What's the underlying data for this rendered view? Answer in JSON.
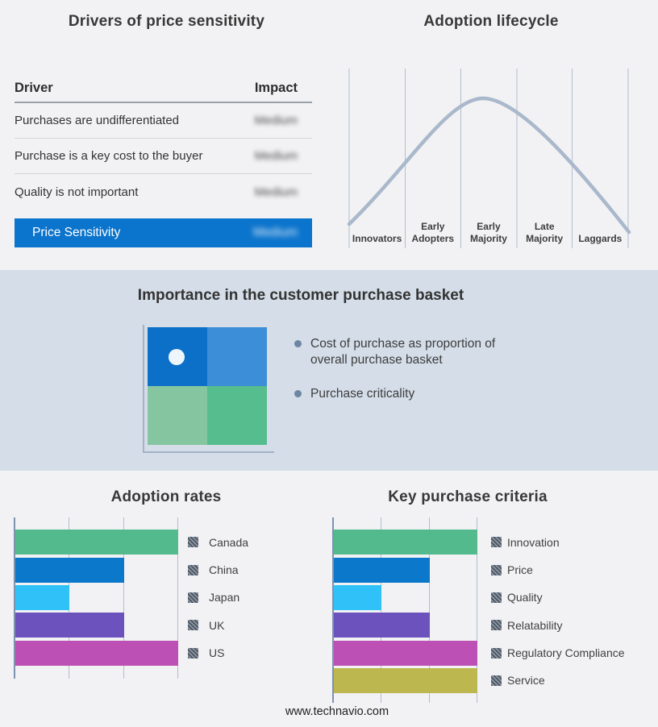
{
  "footer": {
    "url": "www.technavio.com"
  },
  "colors": {
    "accent_blue": "#0b74cc",
    "band_background": "#d4dde8",
    "curve": "#a9b8cb",
    "bullet_dot": "#6e85a3",
    "quadrant": {
      "top_left": "#0c70c8",
      "top_right": "#3d8ed8",
      "bottom_left": "#85c5a0",
      "bottom_right": "#55bd8e"
    },
    "bar_green": "#52ba8c",
    "bar_blue": "#0b78cc",
    "bar_cyan": "#31c1f9",
    "bar_purple": "#6c52bd",
    "bar_magenta": "#bd50b5",
    "bar_olive": "#bcb84f"
  },
  "drivers_table": {
    "title": "Drivers of price sensitivity",
    "columns": [
      "Driver",
      "Impact"
    ],
    "rows": [
      {
        "driver": "Purchases are undifferentiated",
        "impact": "Medium",
        "impact_obscured": true
      },
      {
        "driver": "Purchase is a key cost to the buyer",
        "impact": "Medium",
        "impact_obscured": true
      },
      {
        "driver": "Quality is not important",
        "impact": "Medium",
        "impact_obscured": true
      }
    ],
    "summary_row": {
      "driver": "Price Sensitivity",
      "impact": "Medium",
      "impact_obscured": true
    }
  },
  "basket": {
    "title": "Importance in the customer purchase basket",
    "bullets": [
      "Cost of purchase as proportion of overall purchase basket",
      "Purchase criticality"
    ]
  },
  "chart_data": [
    {
      "type": "line",
      "title": "Adoption lifecycle",
      "subtype": "bell-curve",
      "categories": [
        "Innovators",
        "Early Adopters",
        "Early Majority",
        "Late Majority",
        "Laggards"
      ],
      "curve_points_normalized": [
        [
          0.0,
          0.05
        ],
        [
          0.2,
          0.38
        ],
        [
          0.4,
          0.92
        ],
        [
          0.475,
          1.0
        ],
        [
          0.6,
          0.85
        ],
        [
          0.8,
          0.42
        ],
        [
          1.0,
          0.0
        ]
      ],
      "peak_stage": "Early Majority",
      "grid": "vertical-stage-boundaries",
      "legend_position": "none"
    },
    {
      "type": "bar",
      "orientation": "horizontal",
      "title": "Adoption rates",
      "categories": [
        "Canada",
        "China",
        "Japan",
        "UK",
        "US"
      ],
      "values": [
        3,
        2,
        1,
        2,
        3
      ],
      "xlim": [
        0,
        3
      ],
      "colors": [
        "#52ba8c",
        "#0b78cc",
        "#31c1f9",
        "#6c52bd",
        "#bd50b5"
      ],
      "grid": true,
      "legend_position": "right"
    },
    {
      "type": "bar",
      "orientation": "horizontal",
      "title": "Key purchase criteria",
      "categories": [
        "Innovation",
        "Price",
        "Quality",
        "Relatability",
        "Regulatory Compliance",
        "Service"
      ],
      "values": [
        3,
        2,
        1,
        2,
        3,
        3
      ],
      "xlim": [
        0,
        3
      ],
      "colors": [
        "#52ba8c",
        "#0b78cc",
        "#31c1f9",
        "#6c52bd",
        "#bd50b5",
        "#bcb84f"
      ],
      "grid": true,
      "legend_position": "right"
    }
  ]
}
